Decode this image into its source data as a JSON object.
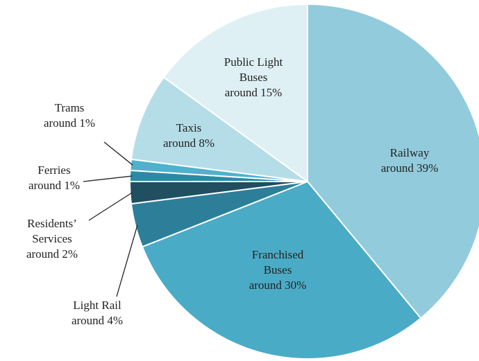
{
  "chart_data": {
    "type": "pie",
    "categories": [
      "Railway",
      "Franchised Buses",
      "Light Rail",
      "Residents’ Services",
      "Ferries",
      "Trams",
      "Taxis",
      "Public Light Buses"
    ],
    "values": [
      39,
      30,
      4,
      2,
      1,
      1,
      8,
      15
    ],
    "value_labels": [
      "around 39%",
      "around 30%",
      "around 4%",
      "around 2%",
      "around 1%",
      "around 1%",
      "around 8%",
      "around 15%"
    ],
    "colors": [
      "#92cbdc",
      "#4aabc6",
      "#2d7f99",
      "#1f4f60",
      "#2b8aa8",
      "#4fb1cc",
      "#b5dde8",
      "#dff0f5"
    ]
  }
}
